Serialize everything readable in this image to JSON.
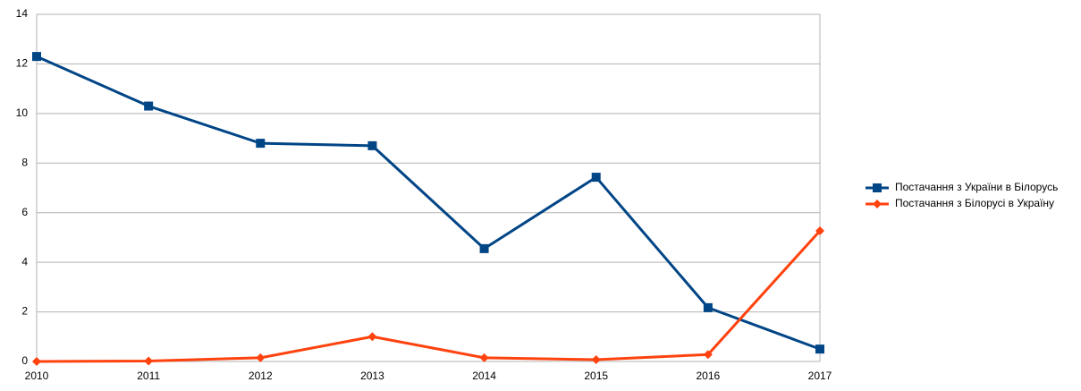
{
  "chart_data": {
    "type": "line",
    "categories": [
      "2010",
      "2011",
      "2012",
      "2013",
      "2014",
      "2015",
      "2016",
      "2017"
    ],
    "series": [
      {
        "name": "Постачання з України в Білорусь",
        "color": "#004586",
        "marker": "square",
        "values": [
          12.3,
          10.3,
          8.8,
          8.7,
          4.55,
          7.43,
          2.17,
          0.5
        ]
      },
      {
        "name": "Постачання з Білорусі в Україну",
        "color": "#ff420e",
        "marker": "diamond",
        "values": [
          0,
          0.02,
          0.15,
          1.0,
          0.15,
          0.07,
          0.28,
          5.27
        ]
      }
    ],
    "ylim": [
      0,
      14
    ],
    "yticks": [
      0,
      2,
      4,
      6,
      8,
      10,
      12,
      14
    ],
    "grid": true,
    "legend": "right"
  }
}
